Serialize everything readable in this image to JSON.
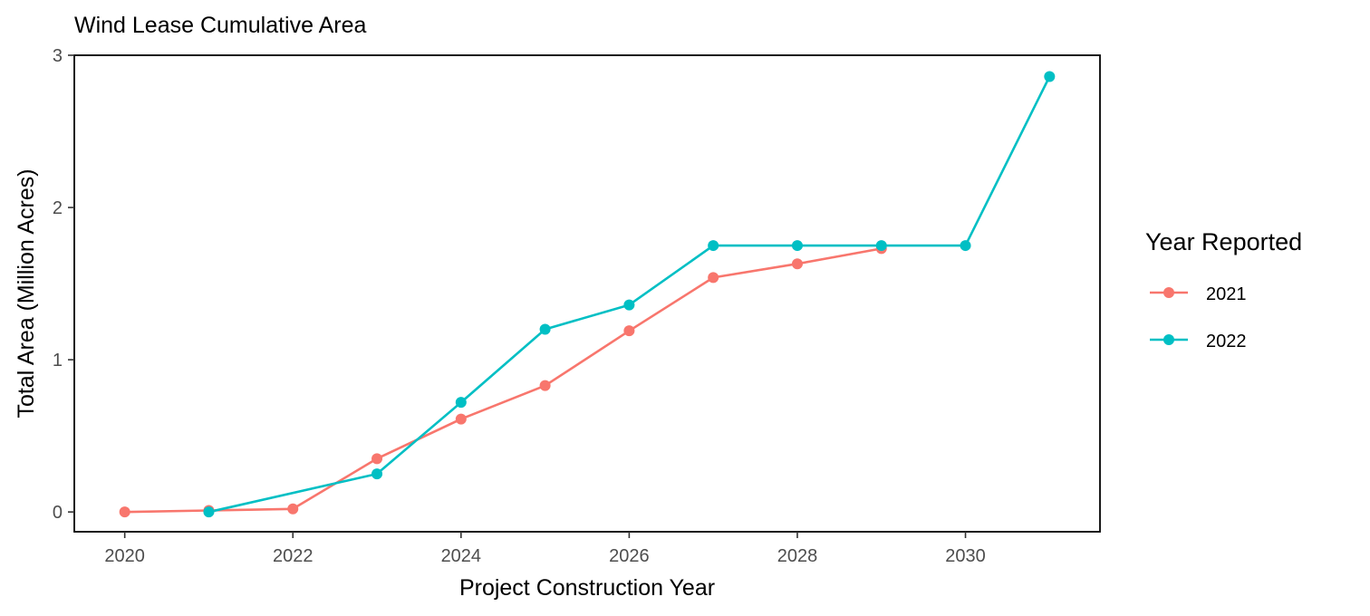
{
  "chart_data": {
    "type": "line",
    "title": "Wind Lease Cumulative Area",
    "xlabel": "Project Construction Year",
    "ylabel": "Total Area (Million Acres)",
    "xlim": [
      2019.4,
      2031.6
    ],
    "ylim": [
      -0.13,
      3.0
    ],
    "x_ticks": [
      2020,
      2022,
      2024,
      2026,
      2028,
      2030
    ],
    "x_tick_labels": [
      "2020",
      "2022",
      "2024",
      "2026",
      "2028",
      "2030"
    ],
    "y_ticks": [
      0,
      1,
      2,
      3
    ],
    "y_tick_labels": [
      "0",
      "1",
      "2",
      "3"
    ],
    "grid": false,
    "legend_title": "Year Reported",
    "legend_position": "right",
    "series": [
      {
        "name": "2021",
        "color": "#F8766D",
        "points": [
          {
            "x": 2020,
            "y": 0.0
          },
          {
            "x": 2021,
            "y": 0.01
          },
          {
            "x": 2022,
            "y": 0.02
          },
          {
            "x": 2023,
            "y": 0.35
          },
          {
            "x": 2024,
            "y": 0.61
          },
          {
            "x": 2025,
            "y": 0.83
          },
          {
            "x": 2026,
            "y": 1.19
          },
          {
            "x": 2027,
            "y": 1.54
          },
          {
            "x": 2028,
            "y": 1.63
          },
          {
            "x": 2029,
            "y": 1.73
          }
        ]
      },
      {
        "name": "2022",
        "color": "#00BFC4",
        "points": [
          {
            "x": 2021,
            "y": 0.0
          },
          {
            "x": 2023,
            "y": 0.25
          },
          {
            "x": 2024,
            "y": 0.72
          },
          {
            "x": 2025,
            "y": 1.2
          },
          {
            "x": 2026,
            "y": 1.36
          },
          {
            "x": 2027,
            "y": 1.75
          },
          {
            "x": 2028,
            "y": 1.75
          },
          {
            "x": 2029,
            "y": 1.75
          },
          {
            "x": 2030,
            "y": 1.75
          },
          {
            "x": 2031,
            "y": 2.86
          }
        ]
      }
    ]
  }
}
